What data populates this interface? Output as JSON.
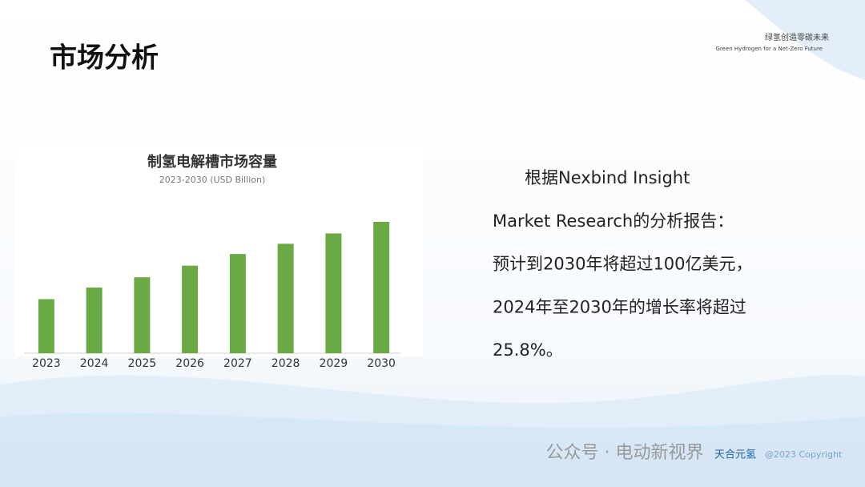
{
  "header": {
    "title": "市场分析",
    "tagline_cn": "绿氢创造零碳未来",
    "tagline_en": "Green Hydrogen for a Net-Zero Future"
  },
  "chart_data": {
    "type": "bar",
    "title": "制氢电解槽市场容量",
    "subtitle": "2023-2030 (USD Billion)",
    "categories": [
      "2023",
      "2024",
      "2025",
      "2026",
      "2027",
      "2028",
      "2029",
      "2030"
    ],
    "values": [
      4.2,
      5.1,
      5.9,
      6.8,
      7.7,
      8.5,
      9.3,
      10.2
    ],
    "color": "#6aaa45",
    "ylim": [
      0,
      12.5
    ]
  },
  "body": {
    "lines": [
      "根据Nexbind Insight",
      "Market Research的分析报告：",
      "预计到2030年将超过100亿美元，",
      "2024年至2030年的增长率将超过",
      "25.8%。"
    ]
  },
  "footer": {
    "watermark": "公众号 · 电动新视界",
    "logo": "天合元氢",
    "copyright": "@2023 Copyright"
  }
}
